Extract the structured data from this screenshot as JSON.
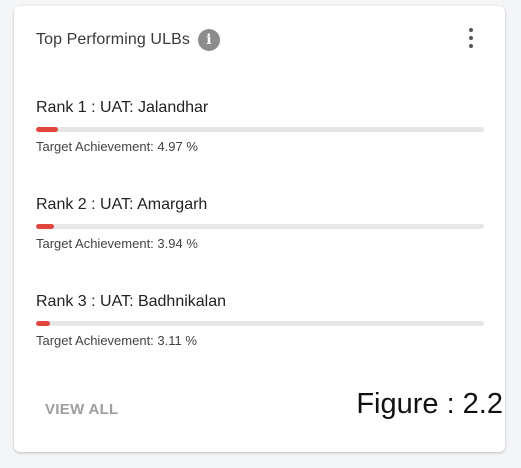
{
  "card": {
    "title": "Top Performing ULBs",
    "info_icon": "info-icon",
    "menu_icon": "more-vert-icon"
  },
  "colors": {
    "progress_fill": "#e0463e",
    "progress_track": "#e6e6e6"
  },
  "rankings": [
    {
      "title": "Rank 1 : UAT: Jalandhar",
      "subtitle": "Target Achievement: 4.97 %",
      "progress": 4.97
    },
    {
      "title": "Rank 2 : UAT: Amargarh",
      "subtitle": "Target Achievement: 3.94 %",
      "progress": 3.94
    },
    {
      "title": "Rank 3 : UAT: Badhnikalan",
      "subtitle": "Target Achievement: 3.11 %",
      "progress": 3.11
    }
  ],
  "footer": {
    "view_all_label": "VIEW ALL",
    "figure_label": "Figure : 2.2"
  }
}
